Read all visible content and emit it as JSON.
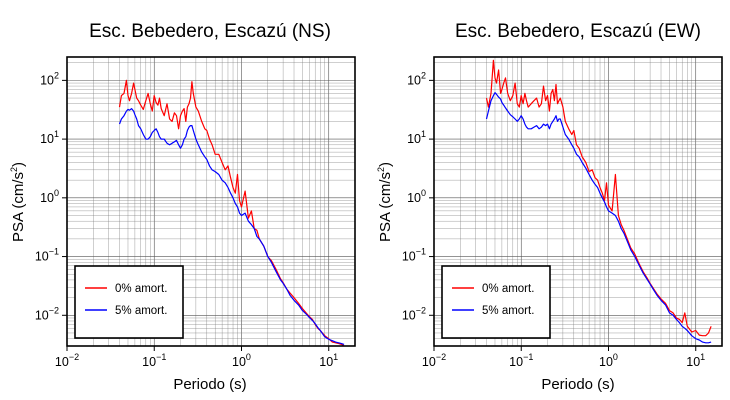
{
  "chart_data": [
    {
      "type": "line",
      "title": "Esc. Bebedero, Escazú (NS)",
      "xlabel": "Periodo (s)",
      "ylabel_main": "PSA (cm/s",
      "ylabel_sup": "2",
      "ylabel_end": ")",
      "xscale": "log",
      "yscale": "log",
      "xlim": [
        0.01,
        20
      ],
      "ylim": [
        0.003,
        250
      ],
      "grid": true,
      "legend_position": "bottom-left",
      "x_ticks": [
        {
          "base": "10",
          "exp": "−2",
          "value": 0.01
        },
        {
          "base": "10",
          "exp": "−1",
          "value": 0.1
        },
        {
          "base": "10",
          "exp": "0",
          "value": 1
        },
        {
          "base": "10",
          "exp": "1",
          "value": 10
        }
      ],
      "y_ticks": [
        {
          "base": "10",
          "exp": "−2",
          "value": 0.01
        },
        {
          "base": "10",
          "exp": "−1",
          "value": 0.1
        },
        {
          "base": "10",
          "exp": "0",
          "value": 1
        },
        {
          "base": "10",
          "exp": "1",
          "value": 10
        },
        {
          "base": "10",
          "exp": "2",
          "value": 100
        }
      ],
      "series": [
        {
          "name": "0% amort.",
          "color": "#ff0000",
          "x": [
            0.04,
            0.042,
            0.045,
            0.048,
            0.05,
            0.052,
            0.055,
            0.058,
            0.06,
            0.063,
            0.066,
            0.07,
            0.075,
            0.08,
            0.085,
            0.09,
            0.095,
            0.1,
            0.105,
            0.11,
            0.115,
            0.12,
            0.13,
            0.14,
            0.15,
            0.16,
            0.17,
            0.18,
            0.19,
            0.2,
            0.21,
            0.22,
            0.23,
            0.24,
            0.25,
            0.26,
            0.27,
            0.28,
            0.3,
            0.32,
            0.35,
            0.38,
            0.4,
            0.43,
            0.46,
            0.5,
            0.55,
            0.6,
            0.65,
            0.7,
            0.75,
            0.8,
            0.85,
            0.9,
            0.95,
            1.0,
            1.1,
            1.2,
            1.3,
            1.4,
            1.5,
            1.6,
            1.8,
            2.0,
            2.2,
            2.5,
            2.8,
            3.0,
            3.3,
            3.6,
            4.0,
            4.5,
            5.0,
            5.5,
            6.0,
            6.5,
            7.0,
            7.5,
            8.0,
            9.0,
            10.0,
            11.0,
            12.0,
            13.0,
            14.0,
            15.0
          ],
          "y": [
            35,
            55,
            60,
            100,
            55,
            45,
            60,
            90,
            70,
            50,
            45,
            38,
            32,
            45,
            60,
            40,
            30,
            55,
            42,
            38,
            50,
            33,
            25,
            40,
            22,
            20,
            28,
            25,
            15,
            25,
            30,
            33,
            20,
            35,
            40,
            50,
            95,
            60,
            35,
            30,
            20,
            15,
            14,
            10,
            8,
            5.5,
            5.5,
            4,
            3,
            3.5,
            2.2,
            1.5,
            1.2,
            2.5,
            0.9,
            0.7,
            1.3,
            0.45,
            0.6,
            0.3,
            0.28,
            0.2,
            0.15,
            0.1,
            0.085,
            0.06,
            0.042,
            0.036,
            0.028,
            0.024,
            0.02,
            0.016,
            0.013,
            0.011,
            0.0095,
            0.0085,
            0.007,
            0.006,
            0.0055,
            0.0045,
            0.004,
            0.0035,
            0.0034,
            0.0033,
            0.0032,
            0.003
          ]
        },
        {
          "name": "5% amort.",
          "color": "#0000ff",
          "x": [
            0.04,
            0.042,
            0.045,
            0.048,
            0.05,
            0.052,
            0.055,
            0.058,
            0.06,
            0.063,
            0.066,
            0.07,
            0.075,
            0.08,
            0.085,
            0.09,
            0.095,
            0.1,
            0.105,
            0.11,
            0.115,
            0.12,
            0.13,
            0.14,
            0.15,
            0.16,
            0.17,
            0.18,
            0.19,
            0.2,
            0.21,
            0.22,
            0.23,
            0.24,
            0.25,
            0.26,
            0.27,
            0.28,
            0.3,
            0.32,
            0.35,
            0.38,
            0.4,
            0.43,
            0.46,
            0.5,
            0.55,
            0.6,
            0.65,
            0.7,
            0.75,
            0.8,
            0.85,
            0.9,
            0.95,
            1.0,
            1.1,
            1.2,
            1.3,
            1.4,
            1.5,
            1.6,
            1.8,
            2.0,
            2.2,
            2.5,
            2.8,
            3.0,
            3.3,
            3.6,
            4.0,
            4.5,
            5.0,
            5.5,
            6.0,
            6.5,
            7.0,
            7.5,
            8.0,
            9.0,
            10.0,
            11.0,
            12.0,
            13.0,
            14.0,
            15.0
          ],
          "y": [
            18,
            22,
            25,
            30,
            32,
            31,
            33,
            30,
            26,
            22,
            17,
            15,
            12,
            10,
            10,
            11,
            13,
            14,
            15,
            13,
            11,
            10,
            10,
            8.5,
            8,
            8.5,
            9,
            9.5,
            8,
            7,
            8,
            10,
            11,
            14,
            16,
            17,
            17,
            14,
            10,
            8,
            6,
            5,
            4.5,
            3.5,
            3,
            2.8,
            2.5,
            2,
            1.8,
            1.5,
            1.2,
            1.0,
            0.8,
            0.7,
            0.55,
            0.5,
            0.55,
            0.4,
            0.35,
            0.3,
            0.22,
            0.2,
            0.15,
            0.1,
            0.08,
            0.055,
            0.04,
            0.035,
            0.028,
            0.022,
            0.018,
            0.015,
            0.012,
            0.0105,
            0.0092,
            0.0082,
            0.0072,
            0.0062,
            0.0055,
            0.0043,
            0.0039,
            0.0037,
            0.0035,
            0.0034,
            0.0033,
            0.0032
          ]
        }
      ]
    },
    {
      "type": "line",
      "title": "Esc. Bebedero, Escazú (EW)",
      "xlabel": "Periodo (s)",
      "ylabel_main": "PSA (cm/s",
      "ylabel_sup": "2",
      "ylabel_end": ")",
      "xscale": "log",
      "yscale": "log",
      "xlim": [
        0.01,
        20
      ],
      "ylim": [
        0.003,
        250
      ],
      "grid": true,
      "legend_position": "bottom-left",
      "x_ticks": [
        {
          "base": "10",
          "exp": "−2",
          "value": 0.01
        },
        {
          "base": "10",
          "exp": "−1",
          "value": 0.1
        },
        {
          "base": "10",
          "exp": "0",
          "value": 1
        },
        {
          "base": "10",
          "exp": "1",
          "value": 10
        }
      ],
      "y_ticks": [
        {
          "base": "10",
          "exp": "−2",
          "value": 0.01
        },
        {
          "base": "10",
          "exp": "−1",
          "value": 0.1
        },
        {
          "base": "10",
          "exp": "0",
          "value": 1
        },
        {
          "base": "10",
          "exp": "1",
          "value": 10
        },
        {
          "base": "10",
          "exp": "2",
          "value": 100
        }
      ],
      "series": [
        {
          "name": "0% amort.",
          "color": "#ff0000",
          "x": [
            0.04,
            0.042,
            0.045,
            0.048,
            0.05,
            0.052,
            0.055,
            0.058,
            0.06,
            0.063,
            0.066,
            0.07,
            0.075,
            0.08,
            0.085,
            0.09,
            0.095,
            0.1,
            0.105,
            0.11,
            0.115,
            0.12,
            0.13,
            0.14,
            0.15,
            0.16,
            0.17,
            0.18,
            0.19,
            0.2,
            0.21,
            0.22,
            0.23,
            0.24,
            0.25,
            0.26,
            0.27,
            0.28,
            0.3,
            0.32,
            0.35,
            0.38,
            0.4,
            0.43,
            0.46,
            0.5,
            0.55,
            0.6,
            0.65,
            0.7,
            0.75,
            0.8,
            0.85,
            0.9,
            0.95,
            1.0,
            1.1,
            1.2,
            1.3,
            1.4,
            1.5,
            1.6,
            1.8,
            2.0,
            2.2,
            2.5,
            2.8,
            3.0,
            3.3,
            3.6,
            4.0,
            4.5,
            5.0,
            5.5,
            6.0,
            6.5,
            7.0,
            7.5,
            8.0,
            9.0,
            10.0,
            11.0,
            12.0,
            13.0,
            14.0,
            15.0
          ],
          "y": [
            50,
            35,
            60,
            220,
            110,
            90,
            150,
            60,
            70,
            90,
            110,
            60,
            45,
            55,
            90,
            40,
            35,
            55,
            40,
            60,
            45,
            35,
            40,
            45,
            50,
            35,
            40,
            80,
            45,
            55,
            30,
            60,
            70,
            45,
            85,
            40,
            45,
            50,
            35,
            20,
            15,
            12,
            14,
            8,
            7,
            5,
            4,
            2.8,
            3,
            2.2,
            2,
            1.5,
            1.2,
            0.9,
            1.8,
            0.75,
            0.6,
            2.5,
            0.5,
            0.35,
            0.28,
            0.22,
            0.14,
            0.11,
            0.08,
            0.055,
            0.042,
            0.035,
            0.028,
            0.023,
            0.019,
            0.016,
            0.012,
            0.011,
            0.009,
            0.0085,
            0.0075,
            0.011,
            0.0065,
            0.0052,
            0.0055,
            0.0046,
            0.0045,
            0.0045,
            0.005,
            0.0065
          ]
        },
        {
          "name": "5% amort.",
          "color": "#0000ff",
          "x": [
            0.04,
            0.042,
            0.045,
            0.048,
            0.05,
            0.052,
            0.055,
            0.058,
            0.06,
            0.063,
            0.066,
            0.07,
            0.075,
            0.08,
            0.085,
            0.09,
            0.095,
            0.1,
            0.105,
            0.11,
            0.115,
            0.12,
            0.13,
            0.14,
            0.15,
            0.16,
            0.17,
            0.18,
            0.19,
            0.2,
            0.21,
            0.22,
            0.23,
            0.24,
            0.25,
            0.26,
            0.27,
            0.28,
            0.3,
            0.32,
            0.35,
            0.38,
            0.4,
            0.43,
            0.46,
            0.5,
            0.55,
            0.6,
            0.65,
            0.7,
            0.75,
            0.8,
            0.85,
            0.9,
            0.95,
            1.0,
            1.1,
            1.2,
            1.3,
            1.4,
            1.5,
            1.6,
            1.8,
            2.0,
            2.2,
            2.5,
            2.8,
            3.0,
            3.3,
            3.6,
            4.0,
            4.5,
            5.0,
            5.5,
            6.0,
            6.5,
            7.0,
            7.5,
            8.0,
            9.0,
            10.0,
            11.0,
            12.0,
            13.0,
            14.0,
            15.0
          ],
          "y": [
            22,
            30,
            45,
            55,
            62,
            58,
            52,
            48,
            42,
            38,
            34,
            30,
            26,
            24,
            22,
            20,
            22,
            25,
            22,
            18,
            16,
            15,
            15,
            16,
            17,
            15,
            16,
            18,
            17,
            18,
            15,
            18,
            20,
            22,
            25,
            20,
            22,
            22,
            16,
            12,
            10,
            8,
            7,
            5.5,
            5,
            4,
            3.2,
            2.5,
            2,
            1.7,
            1.5,
            1.2,
            1.0,
            0.85,
            0.7,
            0.6,
            0.55,
            0.5,
            0.4,
            0.3,
            0.25,
            0.2,
            0.13,
            0.1,
            0.075,
            0.052,
            0.04,
            0.034,
            0.027,
            0.022,
            0.018,
            0.015,
            0.011,
            0.01,
            0.0085,
            0.0075,
            0.0065,
            0.006,
            0.0055,
            0.0045,
            0.004,
            0.0038,
            0.0035,
            0.0034,
            0.0034,
            0.0035
          ]
        }
      ]
    }
  ]
}
